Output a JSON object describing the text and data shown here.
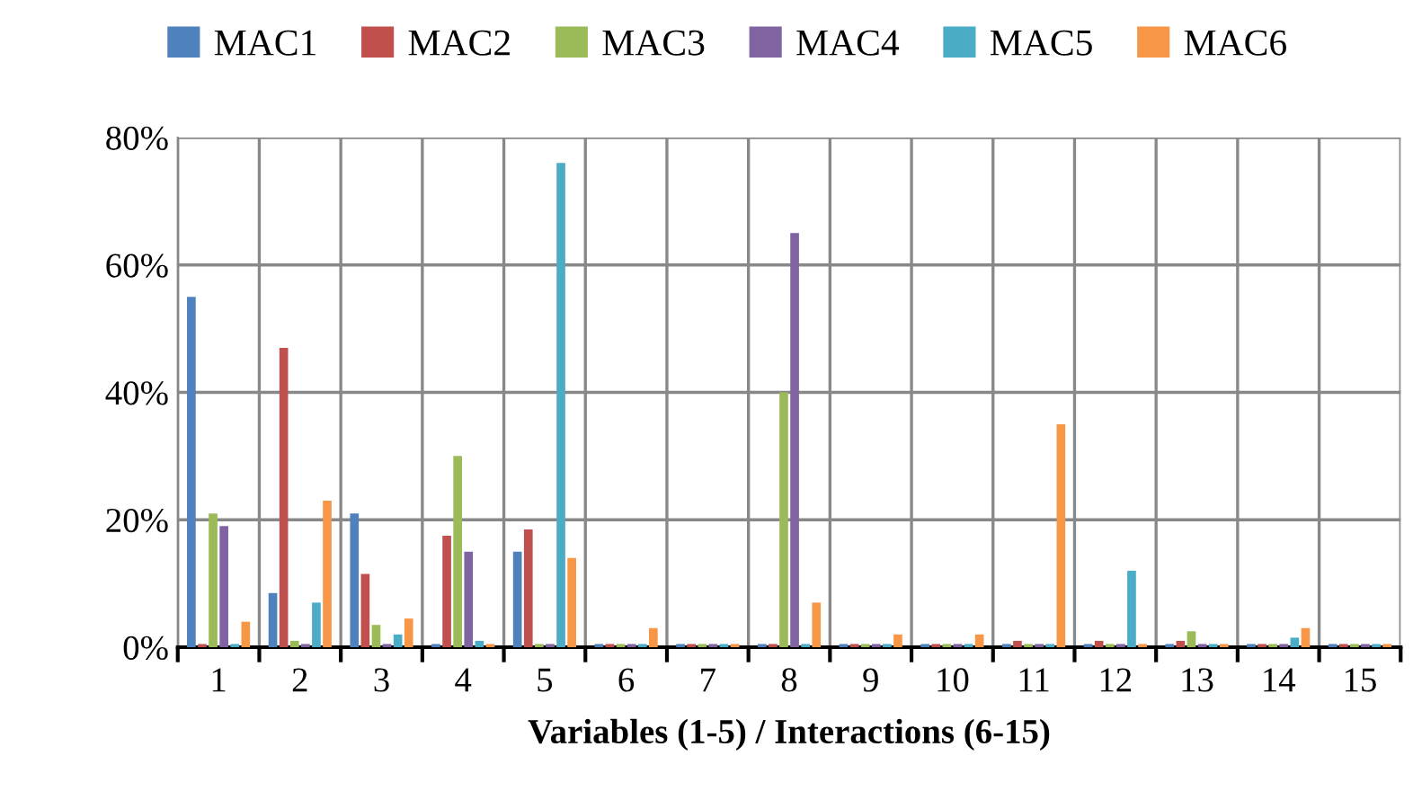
{
  "chart_data": {
    "type": "bar",
    "xlabel": "Variables (1-5) / Interactions (6-15)",
    "categories": [
      "1",
      "2",
      "3",
      "4",
      "5",
      "6",
      "7",
      "8",
      "9",
      "10",
      "11",
      "12",
      "13",
      "14",
      "15"
    ],
    "series": [
      {
        "name": "MAC1",
        "color": "#4f81bd",
        "values": [
          55,
          8.5,
          21,
          0.5,
          15,
          0.5,
          0.5,
          0.5,
          0.5,
          0.5,
          0.5,
          0.5,
          0.5,
          0.5,
          0.5
        ]
      },
      {
        "name": "MAC2",
        "color": "#c0504d",
        "values": [
          0.5,
          47,
          11.5,
          17.5,
          18.5,
          0.5,
          0.5,
          0.5,
          0.5,
          0.5,
          1,
          1,
          1,
          0.5,
          0.5
        ]
      },
      {
        "name": "MAC3",
        "color": "#9bbb59",
        "values": [
          21,
          1,
          3.5,
          30,
          0.5,
          0.5,
          0.5,
          40,
          0.5,
          0.5,
          0.5,
          0.5,
          2.5,
          0.5,
          0.5
        ]
      },
      {
        "name": "MAC4",
        "color": "#8064a2",
        "values": [
          19,
          0.5,
          0.5,
          15,
          0.5,
          0.5,
          0.5,
          65,
          0.5,
          0.5,
          0.5,
          0.5,
          0.5,
          0.5,
          0.5
        ]
      },
      {
        "name": "MAC5",
        "color": "#4bacc6",
        "values": [
          0.5,
          7,
          2,
          1,
          76,
          0.5,
          0.5,
          0.5,
          0.5,
          0.5,
          0.5,
          12,
          0.5,
          1.5,
          0.5
        ]
      },
      {
        "name": "MAC6",
        "color": "#f79646",
        "values": [
          4,
          23,
          4.5,
          0.5,
          14,
          3,
          0.5,
          7,
          2,
          2,
          35,
          0.5,
          0.5,
          3,
          0.5
        ]
      }
    ],
    "ylim": [
      0,
      80
    ],
    "yticks": [
      {
        "value": 0,
        "label": "0%"
      },
      {
        "value": 20,
        "label": "20%"
      },
      {
        "value": 40,
        "label": "40%"
      },
      {
        "value": 60,
        "label": "60%"
      },
      {
        "value": 80,
        "label": "80%"
      }
    ],
    "grid": true,
    "legend": "top"
  }
}
